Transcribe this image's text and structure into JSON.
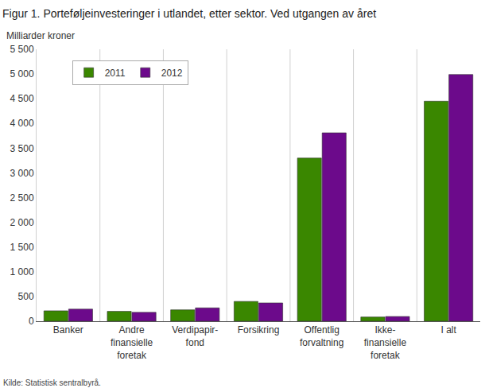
{
  "chart_data": {
    "type": "bar",
    "title": "Figur 1. Porteføljeinvesteringer i utlandet, etter sektor. Ved utgangen av året",
    "y_label": "Milliarder kroner",
    "source": "Kilde: Statistisk sentralbyrå.",
    "categories": [
      "Banker",
      "Andre\nfinansielle\nforetak",
      "Verdipapir-\nfond",
      "Forsikring",
      "Offentlig\nforvaltning",
      "Ikke-\nfinansielle\nforetak",
      "I alt"
    ],
    "series": [
      {
        "name": "2011",
        "color": "#3a8700",
        "values": [
          210,
          200,
          230,
          400,
          3300,
          85,
          4450
        ]
      },
      {
        "name": "2012",
        "color": "#6c0a8b",
        "values": [
          245,
          180,
          270,
          370,
          3810,
          95,
          4990
        ]
      }
    ],
    "ylim": [
      0,
      5500
    ],
    "yticks": [
      0,
      500,
      {
        "value": 1000,
        "label": "1 000"
      },
      {
        "value": 1500,
        "label": "1 500"
      },
      {
        "value": 2000,
        "label": "2 000"
      },
      {
        "value": 2500,
        "label": "2 500"
      },
      {
        "value": 3000,
        "label": "3 000"
      },
      {
        "value": 3500,
        "label": "3 500"
      },
      {
        "value": 4000,
        "label": "4 000"
      },
      {
        "value": 4500,
        "label": "4 500"
      },
      {
        "value": 5000,
        "label": "5 000"
      },
      {
        "value": 5500,
        "label": "5 500"
      }
    ],
    "grid": true,
    "legend": "upper left"
  }
}
